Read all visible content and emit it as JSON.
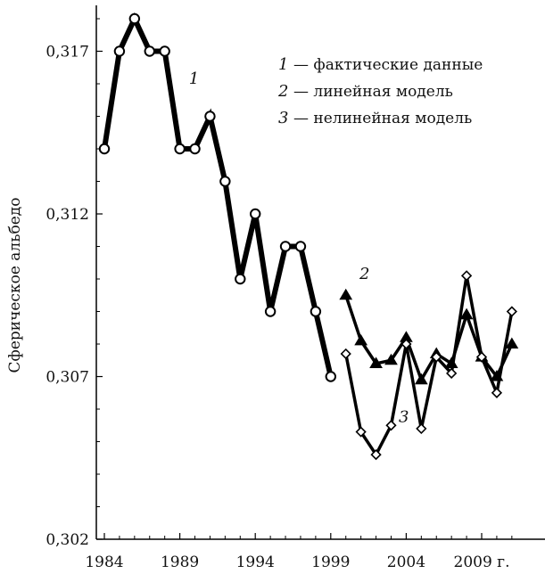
{
  "chart_data": {
    "type": "line",
    "xlabel": "",
    "ylabel": "Сферическое альбедо",
    "xlim": [
      1984,
      2011.5
    ],
    "ylim": [
      0.302,
      0.3185
    ],
    "x_ticks": [
      {
        "value": 1984,
        "label": "1984"
      },
      {
        "value": 1989,
        "label": "1989"
      },
      {
        "value": 1994,
        "label": "1994"
      },
      {
        "value": 1999,
        "label": "1999"
      },
      {
        "value": 2004,
        "label": "2004"
      },
      {
        "value": 2009,
        "label": "2009 г."
      }
    ],
    "y_ticks": [
      {
        "value": 0.302,
        "label": "0,302"
      },
      {
        "value": 0.307,
        "label": "0,307"
      },
      {
        "value": 0.312,
        "label": "0,312"
      },
      {
        "value": 0.317,
        "label": "0,317"
      }
    ],
    "grid": false,
    "legend": {
      "position": "top-right",
      "entries": [
        {
          "num": "1",
          "text": "— фактические данные"
        },
        {
          "num": "2",
          "text": "— линейная модель"
        },
        {
          "num": "3",
          "text": "— нелинейная модель"
        }
      ]
    },
    "annotations": [
      {
        "text": "1",
        "x": 1989.6,
        "y": 0.316
      },
      {
        "text": "2",
        "x": 2000.9,
        "y": 0.31
      },
      {
        "text": "3",
        "x": 2003.5,
        "y": 0.3056
      }
    ],
    "series": [
      {
        "label": "1",
        "marker": "circle",
        "line_width": 6,
        "x": [
          1984,
          1985,
          1986,
          1987,
          1988,
          1989,
          1990,
          1991,
          1992,
          1993,
          1994,
          1995,
          1996,
          1997,
          1998,
          1999
        ],
        "y": [
          0.314,
          0.317,
          0.318,
          0.317,
          0.317,
          0.314,
          0.314,
          0.315,
          0.313,
          0.31,
          0.312,
          0.309,
          0.311,
          0.311,
          0.309,
          0.307
        ]
      },
      {
        "label": "2",
        "marker": "triangle",
        "line_width": 3.5,
        "x": [
          2000,
          2001,
          2002,
          2003,
          2004,
          2005,
          2006,
          2007,
          2008,
          2009,
          2010,
          2011
        ],
        "y": [
          0.3095,
          0.3081,
          0.3074,
          0.3075,
          0.3082,
          0.3069,
          0.3077,
          0.3074,
          0.3089,
          0.3076,
          0.307,
          0.308
        ]
      },
      {
        "label": "3",
        "marker": "diamond",
        "line_width": 3.5,
        "x": [
          2000,
          2001,
          2002,
          2003,
          2004,
          2005,
          2006,
          2007,
          2008,
          2009,
          2010,
          2011
        ],
        "y": [
          0.3077,
          0.3053,
          0.3046,
          0.3055,
          0.308,
          0.3054,
          0.3076,
          0.3071,
          0.3101,
          0.3076,
          0.3065,
          0.309
        ]
      }
    ]
  }
}
